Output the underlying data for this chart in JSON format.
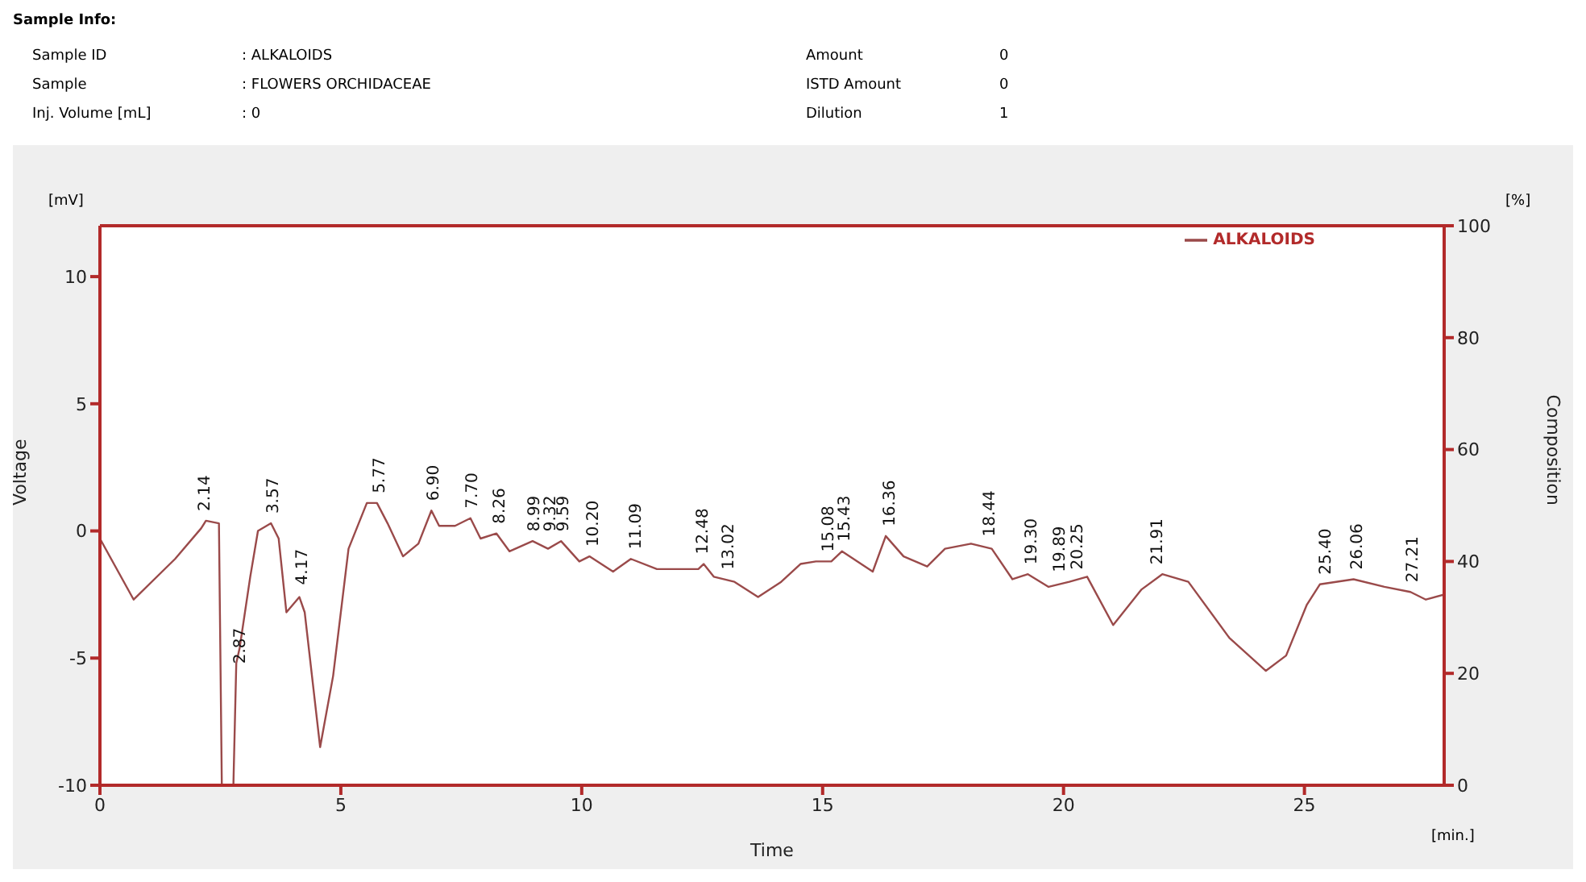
{
  "chart_data": {
    "type": "line",
    "xlabel": "Time",
    "ylabel": "Voltage",
    "y2label": "Composition",
    "xlim": [
      0,
      27.9
    ],
    "xticks": [
      0,
      5,
      10,
      15,
      20,
      25
    ],
    "ylim": [
      -10,
      12
    ],
    "yticks": [
      -10,
      -5,
      0,
      5,
      10
    ],
    "y2lim": [
      0,
      100
    ],
    "y2ticks": [
      0,
      20,
      40,
      60,
      80,
      100
    ],
    "grid": false,
    "legend": "top right",
    "marker": "none",
    "line_style": "solid",
    "series": [
      {
        "name": "ALKALOIDS",
        "color": "#9a4a4a",
        "x": [
          0,
          0.7,
          1.56,
          2.1,
          2.2,
          2.47,
          2.53,
          2.77,
          2.83,
          2.9,
          3.12,
          3.28,
          3.55,
          3.71,
          3.87,
          4.14,
          4.25,
          4.57,
          4.84,
          5.16,
          5.54,
          5.75,
          5.97,
          6.29,
          6.61,
          6.88,
          7.04,
          7.37,
          7.69,
          7.9,
          8.23,
          8.5,
          8.98,
          9.3,
          9.57,
          9.95,
          10.16,
          10.65,
          11.02,
          11.56,
          12.42,
          12.53,
          12.74,
          13.17,
          13.66,
          14.14,
          14.54,
          14.86,
          15.18,
          15.4,
          16.04,
          16.31,
          16.68,
          17.17,
          17.54,
          18.08,
          18.51,
          18.94,
          19.26,
          19.69,
          20.12,
          20.49,
          21.03,
          21.62,
          22.05,
          22.59,
          23.44,
          24.2,
          24.62,
          25.05,
          25.32,
          26.02,
          26.66,
          27.2,
          27.52,
          27.9
        ],
        "values": [
          -0.3,
          -2.7,
          -1.1,
          0.1,
          0.4,
          0.3,
          -10,
          -10,
          -5.2,
          -4.6,
          -1.8,
          0,
          0.3,
          -0.3,
          -3.2,
          -2.6,
          -3.2,
          -8.5,
          -5.7,
          -0.7,
          1.1,
          1.1,
          0.3,
          -1,
          -0.5,
          0.8,
          0.2,
          0.2,
          0.5,
          -0.3,
          -0.1,
          -0.8,
          -0.4,
          -0.7,
          -0.4,
          -1.2,
          -1,
          -1.6,
          -1.1,
          -1.5,
          -1.5,
          -1.3,
          -1.8,
          -2,
          -2.6,
          -2,
          -1.3,
          -1.2,
          -1.2,
          -0.8,
          -1.6,
          -0.2,
          -1,
          -1.4,
          -0.7,
          -0.5,
          -0.7,
          -1.9,
          -1.7,
          -2.2,
          -2,
          -1.8,
          -3.7,
          -2.3,
          -1.7,
          -2,
          -4.2,
          -5.5,
          -4.9,
          -2.9,
          -2.1,
          -1.9,
          -2.2,
          -2.4,
          -2.7,
          -2.5
        ]
      }
    ],
    "annotations": [
      "Sample Info:",
      "Sample ID",
      ": ALKALOIDS",
      "Amount",
      "0",
      "Sample",
      ": FLOWERS ORCHIDACEAE",
      "ISTD Amount",
      "0",
      "Inj. Volume [mL]",
      ": 0",
      "Dilution",
      "1",
      "[mV]",
      "[%]",
      "[min.]",
      {
        "text": "2.14",
        "x": 2.14,
        "y": 0.4
      },
      {
        "text": "2.87",
        "x": 2.87,
        "y": -5.6
      },
      {
        "text": "3.57",
        "x": 3.57,
        "y": 0.3
      },
      {
        "text": "4.17",
        "x": 4.17,
        "y": -2.5
      },
      {
        "text": "5.77",
        "x": 5.77,
        "y": 1.1
      },
      {
        "text": "6.90",
        "x": 6.9,
        "y": 0.8
      },
      {
        "text": "7.70",
        "x": 7.7,
        "y": 0.5
      },
      {
        "text": "8.26",
        "x": 8.26,
        "y": -0.1
      },
      {
        "text": "8.99",
        "x": 8.99,
        "y": -0.4
      },
      {
        "text": "9.32",
        "x": 9.32,
        "y": -0.4
      },
      {
        "text": "9.59",
        "x": 9.59,
        "y": -0.4
      },
      {
        "text": "10.20",
        "x": 10.2,
        "y": -1
      },
      {
        "text": "11.09",
        "x": 11.09,
        "y": -1.1
      },
      {
        "text": "12.48",
        "x": 12.48,
        "y": -1.3
      },
      {
        "text": "13.02",
        "x": 13.02,
        "y": -1.9
      },
      {
        "text": "15.08",
        "x": 15.08,
        "y": -1.2
      },
      {
        "text": "15.43",
        "x": 15.43,
        "y": -0.8
      },
      {
        "text": "16.36",
        "x": 16.36,
        "y": -0.2
      },
      {
        "text": "18.44",
        "x": 18.44,
        "y": -0.6
      },
      {
        "text": "19.30",
        "x": 19.3,
        "y": -1.7
      },
      {
        "text": "19.89",
        "x": 19.89,
        "y": -2
      },
      {
        "text": "20.25",
        "x": 20.25,
        "y": -1.9
      },
      {
        "text": "21.91",
        "x": 21.91,
        "y": -1.7
      },
      {
        "text": "25.40",
        "x": 25.4,
        "y": -2.1
      },
      {
        "text": "26.06",
        "x": 26.06,
        "y": -1.9
      },
      {
        "text": "27.21",
        "x": 27.21,
        "y": -2.4
      }
    ]
  }
}
